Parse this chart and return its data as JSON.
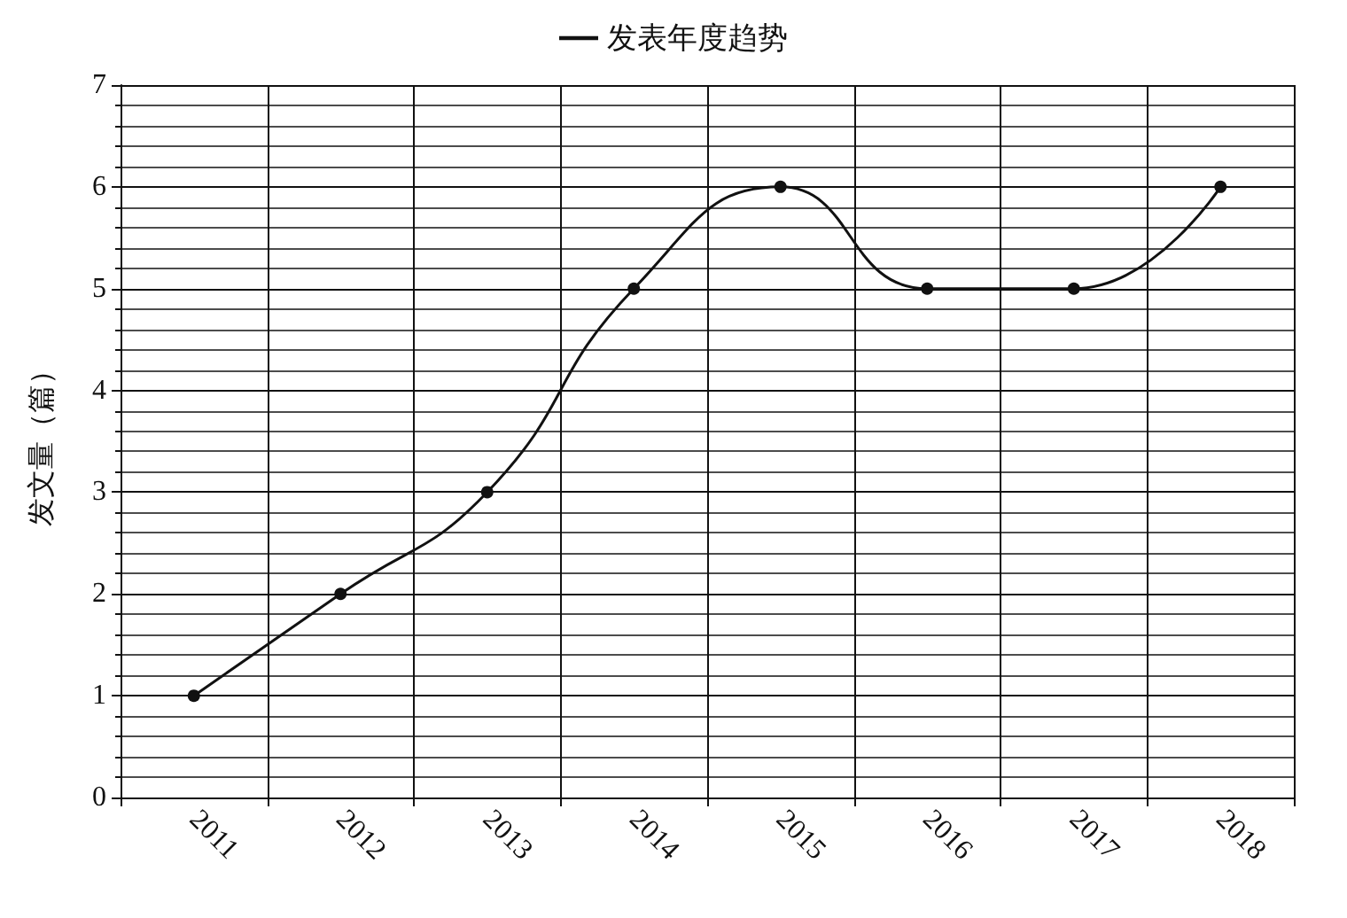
{
  "chart_data": {
    "type": "line",
    "ylabel": "发文量（篇）",
    "categories": [
      "2011",
      "2012",
      "2013",
      "2014",
      "2015",
      "2016",
      "2017",
      "2018"
    ],
    "series": [
      {
        "name": "发表年度趋势",
        "color": "#111111",
        "values": [
          1,
          2,
          3,
          5,
          6,
          5,
          5,
          6
        ]
      }
    ],
    "ylim": [
      0,
      7
    ],
    "yticks": [
      0,
      1,
      2,
      3,
      4,
      5,
      6,
      7
    ],
    "grid": true,
    "legend": "top",
    "marker": "circle",
    "line_style": "solid"
  }
}
